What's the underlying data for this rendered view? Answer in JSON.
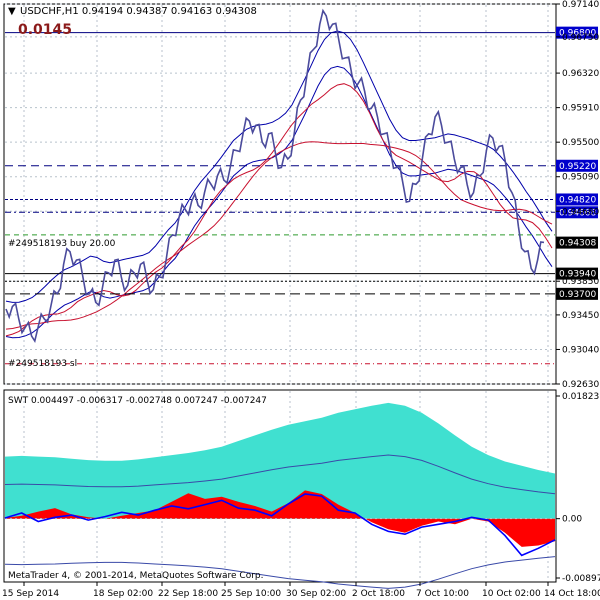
{
  "header": {
    "symbol_line": "USDCHF,H1  0.94194 0.94387 0.94163 0.94308",
    "spread_value": "0.0145"
  },
  "colors": {
    "price_line": "#4b4b9c",
    "current_price_bg": "#000000",
    "horizontal_line_bg": "#0000cc",
    "swt_teal": "#40e0d0",
    "swt_red": "#ff0000",
    "swt_blue_line": "#0000ff",
    "ma_red": "#c8102e",
    "envelope_blue": "#0000aa"
  },
  "chart_data": [
    {
      "type": "line",
      "title": "USDCHF,H1",
      "yaxis_ticks": [
        "0.97140",
        "0.96750",
        "0.96320",
        "0.95910",
        "0.95500",
        "0.95090",
        "0.94680",
        "0.93850",
        "0.93450",
        "0.93040",
        "0.92630"
      ],
      "ylim": [
        0.9263,
        0.9714
      ],
      "price_tags": [
        {
          "label": "0.96800",
          "value": 0.968,
          "style": "solid-blue-tag"
        },
        {
          "label": "0.95220",
          "value": 0.9522,
          "style": "dash-blue-tag"
        },
        {
          "label": "0.94820",
          "value": 0.9482,
          "style": "dot-blue-tag"
        },
        {
          "label": "0.94668",
          "value": 0.94668,
          "style": "dashdot-blue-tag"
        },
        {
          "label": "0.94308",
          "value": 0.94308,
          "style": "current-black-tag"
        },
        {
          "label": "0.93940",
          "value": 0.9394,
          "style": "solid-black-tag"
        },
        {
          "label": "0.93700",
          "value": 0.937,
          "style": "dash-black-tag"
        }
      ],
      "order_labels": [
        "#249518193 buy 20.00",
        "#249518193 sl"
      ],
      "x_tick_labels": [
        "15 Sep 2014",
        "18 Sep 02:00",
        "22 Sep 18:00",
        "25 Sep 10:00",
        "30 Sep 02:00",
        "2 Oct 18:00",
        "7 Oct 10:00",
        "10 Oct 02:00",
        "14 Oct 18:00"
      ],
      "price_series": [
        0.9352,
        0.9355,
        0.934,
        0.933,
        0.932,
        0.933,
        0.934,
        0.9355,
        0.937,
        0.9405,
        0.942,
        0.941,
        0.939,
        0.937,
        0.936,
        0.9375,
        0.9395,
        0.941,
        0.939,
        0.938,
        0.9395,
        0.9405,
        0.9388,
        0.9375,
        0.939,
        0.941,
        0.944,
        0.946,
        0.947,
        0.948,
        0.9475,
        0.949,
        0.95,
        0.951,
        0.9505,
        0.952,
        0.954,
        0.956,
        0.9575,
        0.957,
        0.955,
        0.956,
        0.954,
        0.952,
        0.953,
        0.956,
        0.96,
        0.963,
        0.966,
        0.969,
        0.97,
        0.969,
        0.967,
        0.965,
        0.963,
        0.962,
        0.961,
        0.959,
        0.958,
        0.956,
        0.954,
        0.952,
        0.95,
        0.948,
        0.95,
        0.953,
        0.956,
        0.958,
        0.957,
        0.955,
        0.953,
        0.952,
        0.95,
        0.949,
        0.951,
        0.954,
        0.9555,
        0.9545,
        0.9525,
        0.949,
        0.945,
        0.942,
        0.94,
        0.941,
        0.9431
      ]
    },
    {
      "type": "area",
      "title": "SWT",
      "values_label": "SWT 0.004497 -0.006317 -0.002748 0.007247 -0.007247",
      "yaxis_ticks": [
        "0.01823",
        "0.00",
        "-0.008972"
      ],
      "ylim": [
        -0.008972,
        0.01823
      ],
      "teal_envelope": [
        0.0088,
        0.0089,
        0.0088,
        0.0087,
        0.0085,
        0.0083,
        0.0082,
        0.0082,
        0.0084,
        0.0087,
        0.009,
        0.0093,
        0.0097,
        0.0102,
        0.011,
        0.0118,
        0.0126,
        0.0133,
        0.0138,
        0.0143,
        0.015,
        0.0155,
        0.016,
        0.0164,
        0.016,
        0.015,
        0.0135,
        0.0118,
        0.0102,
        0.009,
        0.0081,
        0.0075,
        0.0069,
        0.0064
      ],
      "red_histogram": [
        0.0001,
        0.0004,
        0.001,
        0.0015,
        0.0006,
        0.0002,
        0.0,
        0.0004,
        0.0008,
        0.0012,
        0.0024,
        0.0036,
        0.0028,
        0.0031,
        0.0024,
        0.0018,
        0.001,
        0.0022,
        0.004,
        0.0035,
        0.002,
        0.0008,
        -0.0005,
        -0.0015,
        -0.002,
        -0.001,
        -0.0004,
        -0.0008,
        0.0,
        -0.0004,
        -0.002,
        -0.004,
        -0.0038,
        -0.0032
      ],
      "blue_line": [
        0.0001,
        0.0008,
        -0.0004,
        0.0002,
        0.0005,
        -0.0002,
        0.0003,
        0.0009,
        0.0005,
        0.0012,
        0.0018,
        0.0014,
        0.002,
        0.0026,
        0.0015,
        0.0012,
        0.0004,
        0.0021,
        0.0035,
        0.0032,
        0.0012,
        0.0008,
        -0.0008,
        -0.0018,
        -0.0022,
        -0.0012,
        -0.0008,
        -0.0004,
        0.0002,
        -0.0002,
        -0.0024,
        -0.0052,
        -0.0042,
        -0.003
      ]
    }
  ],
  "footer": {
    "copyright": "MetaTrader 4, © 2001-2014, MetaQuotes Software Corp."
  }
}
